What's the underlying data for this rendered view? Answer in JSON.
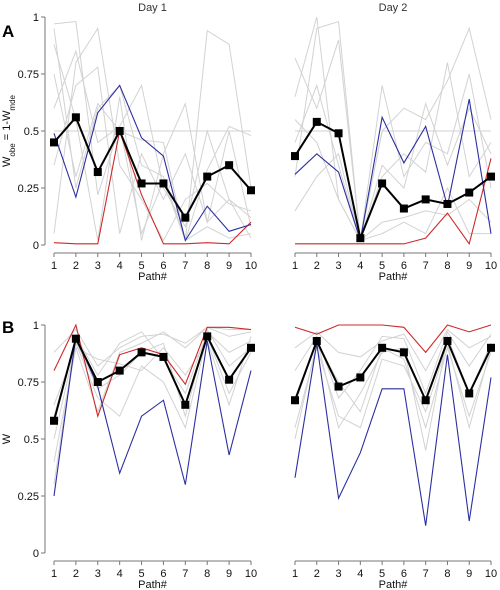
{
  "panel_letters": [
    "A",
    "B"
  ],
  "colors": {
    "individual": "#d2d2d2",
    "mean": "#000000",
    "red": "#cc2a2a",
    "blue": "#2b2fa0",
    "axis": "#777777"
  },
  "chart_data": [
    {
      "panel": "A",
      "title": "Day 1",
      "type": "line",
      "ylabel_parts": [
        "W",
        "obe",
        " = 1-W",
        "mde"
      ],
      "xlabel": "Path#",
      "x": [
        1,
        2,
        3,
        4,
        5,
        6,
        7,
        8,
        9,
        10
      ],
      "xticks": [
        "1",
        "2",
        "3",
        "4",
        "5",
        "6",
        "7",
        "8",
        "9",
        "10"
      ],
      "yticks": [
        0,
        0.25,
        0.5,
        0.75,
        1
      ],
      "ytick_labels": [
        "0",
        "0.25",
        "0.5",
        "0.75",
        "1"
      ],
      "ylim": [
        0,
        1
      ],
      "show_yaxis": true,
      "background": [
        [
          0.97,
          0.98,
          0.22,
          0.52,
          0.05,
          0.28,
          0.02,
          0.08,
          0.03,
          0.05
        ],
        [
          0.95,
          0.25,
          0.6,
          0.7,
          0.35,
          0.3,
          0.02,
          0.94,
          0.88,
          0.25
        ],
        [
          0.6,
          0.85,
          0.45,
          0.52,
          0.7,
          0.25,
          0.08,
          0.5,
          0.2,
          0.12
        ],
        [
          0.75,
          0.3,
          0.62,
          0.5,
          0.46,
          0.45,
          0.02,
          0.33,
          0.52,
          0.48
        ],
        [
          0.05,
          0.8,
          0.95,
          0.35,
          0.2,
          0.02,
          0.2,
          0.27,
          0.18,
          0.15
        ],
        [
          0.5,
          0.5,
          0.5,
          0.5,
          0.5,
          0.5,
          0.5,
          0.5,
          0.5,
          0.5
        ],
        [
          0.35,
          0.7,
          0.78,
          0.05,
          0.4,
          0.2,
          0.4,
          0.1,
          0.5,
          0.08
        ],
        [
          0.88,
          0.55,
          0.02,
          0.65,
          0.02,
          0.4,
          0.62,
          0.1,
          0.2,
          0.03
        ]
      ],
      "series": [
        {
          "values": [
            0.01,
            0.005,
            0.005,
            0.5,
            0.22,
            0.005,
            0.005,
            0.01,
            0.005,
            0.1
          ],
          "color": "#cc2a2a",
          "markers": false
        },
        {
          "values": [
            0.49,
            0.21,
            0.58,
            0.7,
            0.47,
            0.39,
            0.02,
            0.17,
            0.06,
            0.09
          ],
          "color": "#2b2fa0",
          "markers": false
        },
        {
          "values": [
            0.45,
            0.56,
            0.32,
            0.5,
            0.27,
            0.27,
            0.12,
            0.3,
            0.35,
            0.24
          ],
          "color": "#000000",
          "markers": true
        }
      ]
    },
    {
      "panel": "A",
      "title": "Day 2",
      "type": "line",
      "xlabel": "Path#",
      "x": [
        1,
        2,
        3,
        4,
        5,
        6,
        7,
        8,
        9,
        10
      ],
      "xticks": [
        "1",
        "2",
        "3",
        "4",
        "5",
        "6",
        "7",
        "8",
        "9",
        "10"
      ],
      "yticks": [
        0,
        0.25,
        0.5,
        0.75,
        1
      ],
      "ylim": [
        0,
        1
      ],
      "show_yaxis": false,
      "background": [
        [
          0.65,
          1.0,
          0.2,
          0.02,
          0.5,
          0.6,
          0.55,
          0.72,
          0.95,
          0.55
        ],
        [
          0.3,
          0.95,
          0.98,
          0.02,
          0.1,
          0.12,
          0.15,
          0.13,
          0.2,
          0.1
        ],
        [
          0.5,
          0.5,
          0.5,
          0.02,
          0.5,
          0.5,
          0.5,
          0.5,
          0.5,
          0.5
        ],
        [
          0.82,
          0.6,
          0.9,
          0.02,
          0.7,
          0.3,
          0.45,
          0.4,
          0.75,
          0.25
        ],
        [
          0.15,
          0.3,
          0.4,
          0.02,
          0.35,
          0.25,
          0.62,
          0.35,
          0.6,
          0.4
        ],
        [
          0.55,
          0.45,
          0.2,
          0.02,
          0.3,
          0.4,
          0.32,
          0.8,
          0.3,
          0.45
        ],
        [
          0.45,
          0.7,
          0.35,
          0.02,
          0.05,
          0.1,
          0.05,
          0.25,
          0.05,
          0.05
        ]
      ],
      "series": [
        {
          "values": [
            0.005,
            0.005,
            0.005,
            0.005,
            0.005,
            0.005,
            0.03,
            0.14,
            0.005,
            0.38
          ],
          "color": "#cc2a2a",
          "markers": false
        },
        {
          "values": [
            0.31,
            0.4,
            0.32,
            0.02,
            0.56,
            0.36,
            0.52,
            0.17,
            0.64,
            0.05
          ],
          "color": "#2b2fa0",
          "markers": false
        },
        {
          "values": [
            0.39,
            0.54,
            0.49,
            0.03,
            0.27,
            0.16,
            0.2,
            0.18,
            0.23,
            0.3
          ],
          "color": "#000000",
          "markers": true
        }
      ]
    },
    {
      "panel": "B",
      "type": "line",
      "ylabel_parts": [
        "W"
      ],
      "xlabel": "Path#",
      "x": [
        1,
        2,
        3,
        4,
        5,
        6,
        7,
        8,
        9,
        10
      ],
      "xticks": [
        "1",
        "2",
        "3",
        "4",
        "5",
        "6",
        "7",
        "8",
        "9",
        "10"
      ],
      "yticks": [
        0,
        0.25,
        0.5,
        0.75,
        1
      ],
      "ytick_labels": [
        "0",
        "0.25",
        "0.5",
        "0.75",
        "1"
      ],
      "ylim": [
        0,
        1
      ],
      "show_yaxis": true,
      "background": [
        [
          0.88,
          0.98,
          0.82,
          0.9,
          0.95,
          0.96,
          0.92,
          0.99,
          0.98,
          0.98
        ],
        [
          0.6,
          0.93,
          0.72,
          0.78,
          0.88,
          0.92,
          0.6,
          0.98,
          0.82,
          0.9
        ],
        [
          0.4,
          0.9,
          0.85,
          0.83,
          0.8,
          0.9,
          0.78,
          0.93,
          0.65,
          0.95
        ],
        [
          0.5,
          0.92,
          0.68,
          0.6,
          0.82,
          0.75,
          0.55,
          0.95,
          0.7,
          0.88
        ],
        [
          0.3,
          0.95,
          0.78,
          0.92,
          0.97,
          0.85,
          0.7,
          0.97,
          0.88,
          0.93
        ],
        [
          0.65,
          0.9,
          0.62,
          0.88,
          0.92,
          0.97,
          0.9,
          0.99,
          0.95,
          0.97
        ]
      ],
      "series": [
        {
          "values": [
            0.8,
            1.0,
            0.6,
            0.87,
            0.9,
            0.87,
            0.74,
            0.99,
            0.99,
            0.98
          ],
          "color": "#cc2a2a",
          "markers": false
        },
        {
          "values": [
            0.25,
            0.95,
            0.73,
            0.35,
            0.6,
            0.67,
            0.3,
            0.93,
            0.43,
            0.8
          ],
          "color": "#2b2fa0",
          "markers": false
        },
        {
          "values": [
            0.58,
            0.94,
            0.75,
            0.8,
            0.88,
            0.86,
            0.65,
            0.95,
            0.76,
            0.9
          ],
          "color": "#000000",
          "markers": true
        }
      ]
    },
    {
      "panel": "B",
      "type": "line",
      "xlabel": "Path#",
      "x": [
        1,
        2,
        3,
        4,
        5,
        6,
        7,
        8,
        9,
        10
      ],
      "xticks": [
        "1",
        "2",
        "3",
        "4",
        "5",
        "6",
        "7",
        "8",
        "9",
        "10"
      ],
      "yticks": [
        0,
        0.25,
        0.5,
        0.75,
        1
      ],
      "ylim": [
        0,
        1
      ],
      "show_yaxis": false,
      "background": [
        [
          0.9,
          0.97,
          0.88,
          0.86,
          0.93,
          0.96,
          0.8,
          0.98,
          0.9,
          0.95
        ],
        [
          0.65,
          0.94,
          0.55,
          0.7,
          0.88,
          0.9,
          0.45,
          0.95,
          0.7,
          0.92
        ],
        [
          0.5,
          0.92,
          0.75,
          0.62,
          0.9,
          0.85,
          0.55,
          0.9,
          0.6,
          0.88
        ],
        [
          0.8,
          0.95,
          0.68,
          0.8,
          0.95,
          0.94,
          0.7,
          0.97,
          0.82,
          0.96
        ],
        [
          0.55,
          0.9,
          0.6,
          0.55,
          0.85,
          0.82,
          0.62,
          0.92,
          0.55,
          0.9
        ]
      ],
      "series": [
        {
          "values": [
            0.99,
            0.96,
            1.0,
            1.0,
            1.0,
            0.99,
            0.88,
            1.0,
            0.97,
            1.0
          ],
          "color": "#cc2a2a",
          "markers": false
        },
        {
          "values": [
            0.33,
            0.92,
            0.24,
            0.44,
            0.72,
            0.72,
            0.12,
            0.87,
            0.14,
            0.77
          ],
          "color": "#2b2fa0",
          "markers": false
        },
        {
          "values": [
            0.67,
            0.93,
            0.73,
            0.77,
            0.9,
            0.88,
            0.67,
            0.93,
            0.7,
            0.9
          ],
          "color": "#000000",
          "markers": true
        }
      ]
    }
  ]
}
